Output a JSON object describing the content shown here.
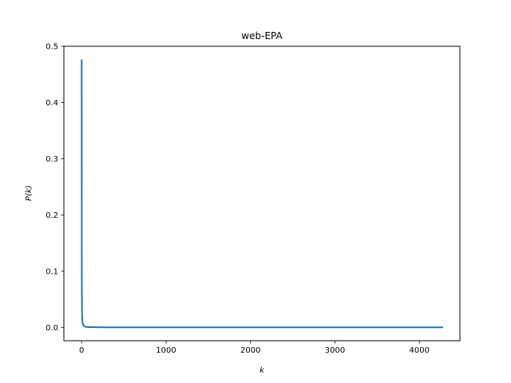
{
  "chart_data": {
    "type": "line",
    "title": "web-EPA",
    "xlabel": "k",
    "ylabel": "P(k)",
    "xlim": [
      -210,
      4480
    ],
    "ylim": [
      -0.0237,
      0.5
    ],
    "xticks": [
      0,
      1000,
      2000,
      3000,
      4000
    ],
    "xtick_labels": [
      "0",
      "1000",
      "2000",
      "3000",
      "4000"
    ],
    "yticks": [
      0.0,
      0.1,
      0.2,
      0.3,
      0.4,
      0.5
    ],
    "ytick_labels": [
      "0.0",
      "0.1",
      "0.2",
      "0.3",
      "0.4",
      "0.5"
    ],
    "grid": false,
    "series": [
      {
        "color": "#1f77b4",
        "x": [
          1,
          2,
          3,
          5,
          8,
          12,
          20,
          30,
          50,
          80,
          120,
          200,
          300,
          500,
          1000,
          2000,
          3000,
          4000,
          4271
        ],
        "y": [
          0.475,
          0.12,
          0.06,
          0.03,
          0.015,
          0.008,
          0.004,
          0.002,
          0.001,
          0.0006,
          0.0004,
          0.0002,
          0.0001,
          5e-05,
          2e-05,
          1e-05,
          1e-05,
          1e-05,
          1e-05
        ]
      }
    ]
  }
}
